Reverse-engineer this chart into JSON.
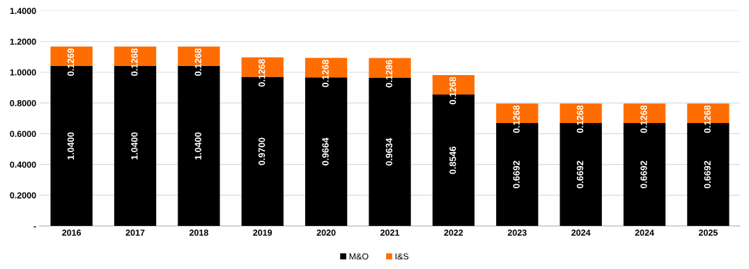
{
  "chart_data": {
    "type": "bar",
    "stacked": true,
    "categories": [
      "2016",
      "2017",
      "2018",
      "2019",
      "2020",
      "2021",
      "2022",
      "2023",
      "2024",
      "2024",
      "2025"
    ],
    "series": [
      {
        "name": "M&O",
        "color": "#000000",
        "values": [
          1.04,
          1.04,
          1.04,
          0.97,
          0.9664,
          0.9634,
          0.8546,
          0.6692,
          0.6692,
          0.6692,
          0.6692
        ],
        "value_labels": [
          "1.0400",
          "1.0400",
          "1.0400",
          "0.9700",
          "0.9664",
          "0.9634",
          "0.8546",
          "0.6692",
          "0.6692",
          "0.6692",
          "0.6692"
        ]
      },
      {
        "name": "I&S",
        "color": "#ff6d00",
        "values": [
          0.1269,
          0.1268,
          0.1268,
          0.1268,
          0.1268,
          0.1286,
          0.1268,
          0.1268,
          0.1268,
          0.1268,
          0.1268
        ],
        "value_labels": [
          "0.1269",
          "0.1268",
          "0.1268",
          "0.1268",
          "0.1268",
          "0.1286",
          "0.1268",
          "0.1268",
          "0.1268",
          "0.1268",
          "0.1268"
        ]
      }
    ],
    "ylim": [
      0,
      1.4
    ],
    "yticks": [
      {
        "value": 0,
        "label": "-"
      },
      {
        "value": 0.2,
        "label": "0.2000"
      },
      {
        "value": 0.4,
        "label": "0.4000"
      },
      {
        "value": 0.6,
        "label": "0.6000"
      },
      {
        "value": 0.8,
        "label": "0.8000"
      },
      {
        "value": 1.0,
        "label": "1.0000"
      },
      {
        "value": 1.2,
        "label": "1.2000"
      },
      {
        "value": 1.4,
        "label": "1.4000"
      }
    ],
    "grid": "y",
    "legend": "bottom"
  }
}
